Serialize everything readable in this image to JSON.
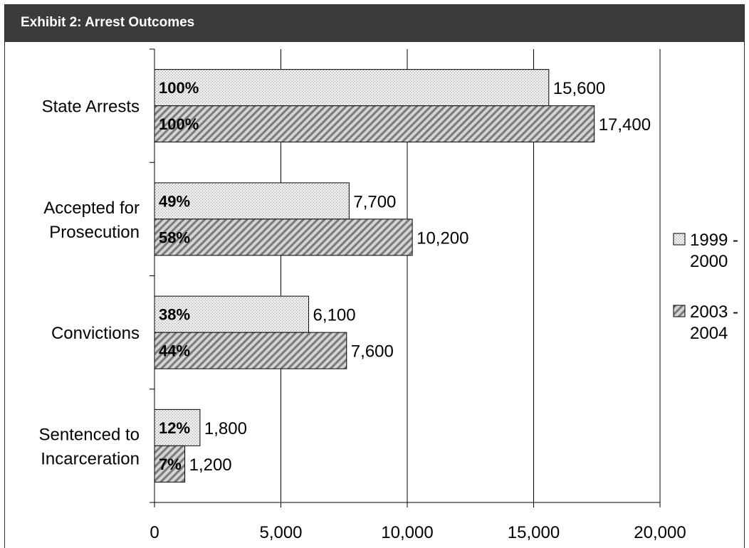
{
  "exhibit": {
    "title": "Exhibit 2:  Arrest Outcomes"
  },
  "chart_data": {
    "type": "bar",
    "orientation": "horizontal",
    "title": "Exhibit 2:  Arrest Outcomes",
    "categories": [
      [
        "State Arrests"
      ],
      [
        "Accepted for",
        "Prosecution"
      ],
      [
        "Convictions"
      ],
      [
        "Sentenced to",
        "Incarceration"
      ]
    ],
    "series": [
      {
        "name": [
          "1999 -",
          "2000"
        ],
        "values": [
          15600,
          7700,
          6100,
          1800
        ],
        "value_labels": [
          "15,600",
          "7,700",
          "6,100",
          "1,800"
        ],
        "percent_labels": [
          "100%",
          "49%",
          "38%",
          "12%"
        ],
        "fill": "#e6e6e6",
        "pattern": "dotted"
      },
      {
        "name": [
          "2003 -",
          "2004"
        ],
        "values": [
          17400,
          10200,
          7600,
          1200
        ],
        "value_labels": [
          "17,400",
          "10,200",
          "7,600",
          "1,200"
        ],
        "percent_labels": [
          "100%",
          "58%",
          "44%",
          "7%"
        ],
        "fill": "#c8c8c8",
        "pattern": "diagonal-stripes"
      }
    ],
    "xlim": [
      0,
      20000
    ],
    "xticks": [
      0,
      5000,
      10000,
      15000,
      20000
    ],
    "xtick_labels": [
      "0",
      "5,000",
      "10,000",
      "15,000",
      "20,000"
    ],
    "grid": "vertical",
    "legend": "right",
    "xlabel": "",
    "ylabel": ""
  }
}
